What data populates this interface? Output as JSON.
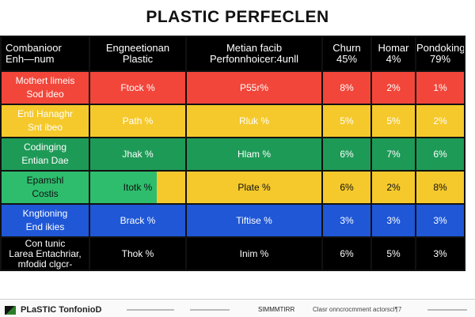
{
  "title": "PLASTIC PERFECLEN",
  "chart_data": {
    "type": "table",
    "columns": [
      [
        "Combanioor",
        "Enh—num"
      ],
      [
        "Engneetionan",
        "Plastic"
      ],
      [
        "Metian facib",
        "Perfonnhoicer:4unll"
      ],
      [
        "Churn",
        "45%"
      ],
      [
        "Homar",
        "4%"
      ],
      [
        "Pondoking",
        "79%"
      ]
    ],
    "rows": [
      {
        "label": [
          "Mothert limeis",
          "Sod ideo"
        ],
        "color": "#f2463a",
        "text_color": "#ffffff",
        "cells": [
          "Ftock %",
          "P55r%",
          "8%",
          "2%",
          "1%"
        ]
      },
      {
        "label": [
          "Enti Hanaghr",
          "Snt ibeo"
        ],
        "color": "#f5c92c",
        "text_color": "#ffffff",
        "cells": [
          "Path %",
          "Rluk %",
          "5%",
          "5%",
          "2%"
        ]
      },
      {
        "label": [
          "Codinging",
          "Entian Dae"
        ],
        "color": "#1e9a57",
        "text_color": "#ffffff",
        "cells": [
          "Jhak %",
          "Hlam %",
          "6%",
          "7%",
          "6%"
        ]
      },
      {
        "label": [
          "Epamshl",
          "Costis"
        ],
        "color": "#f5c92c",
        "first_color": "#2dbd6d",
        "text_color": "#111111",
        "cells": [
          "Itotk %",
          "Plate %",
          "6%",
          "2%",
          "8%"
        ]
      },
      {
        "label": [
          "Kngtioning",
          "End ikies"
        ],
        "color": "#1f57d6",
        "text_color": "#ffffff",
        "cells": [
          "Brack %",
          "Tiftise %",
          "3%",
          "3%",
          "3%"
        ]
      },
      {
        "label": [
          "Con tunic",
          "Larea Entachriar,",
          "mfodid clgcr-"
        ],
        "color": "#000000",
        "text_color": "#ffffff",
        "cells": [
          "Thok %",
          "Inim %",
          "6%",
          "5%",
          "3%"
        ]
      }
    ]
  },
  "footer": {
    "brand": "PLaSTIC TonfonioD",
    "source": "SIMMMTIRR",
    "note": "Clasr onncrocmment actorscl¶7"
  }
}
